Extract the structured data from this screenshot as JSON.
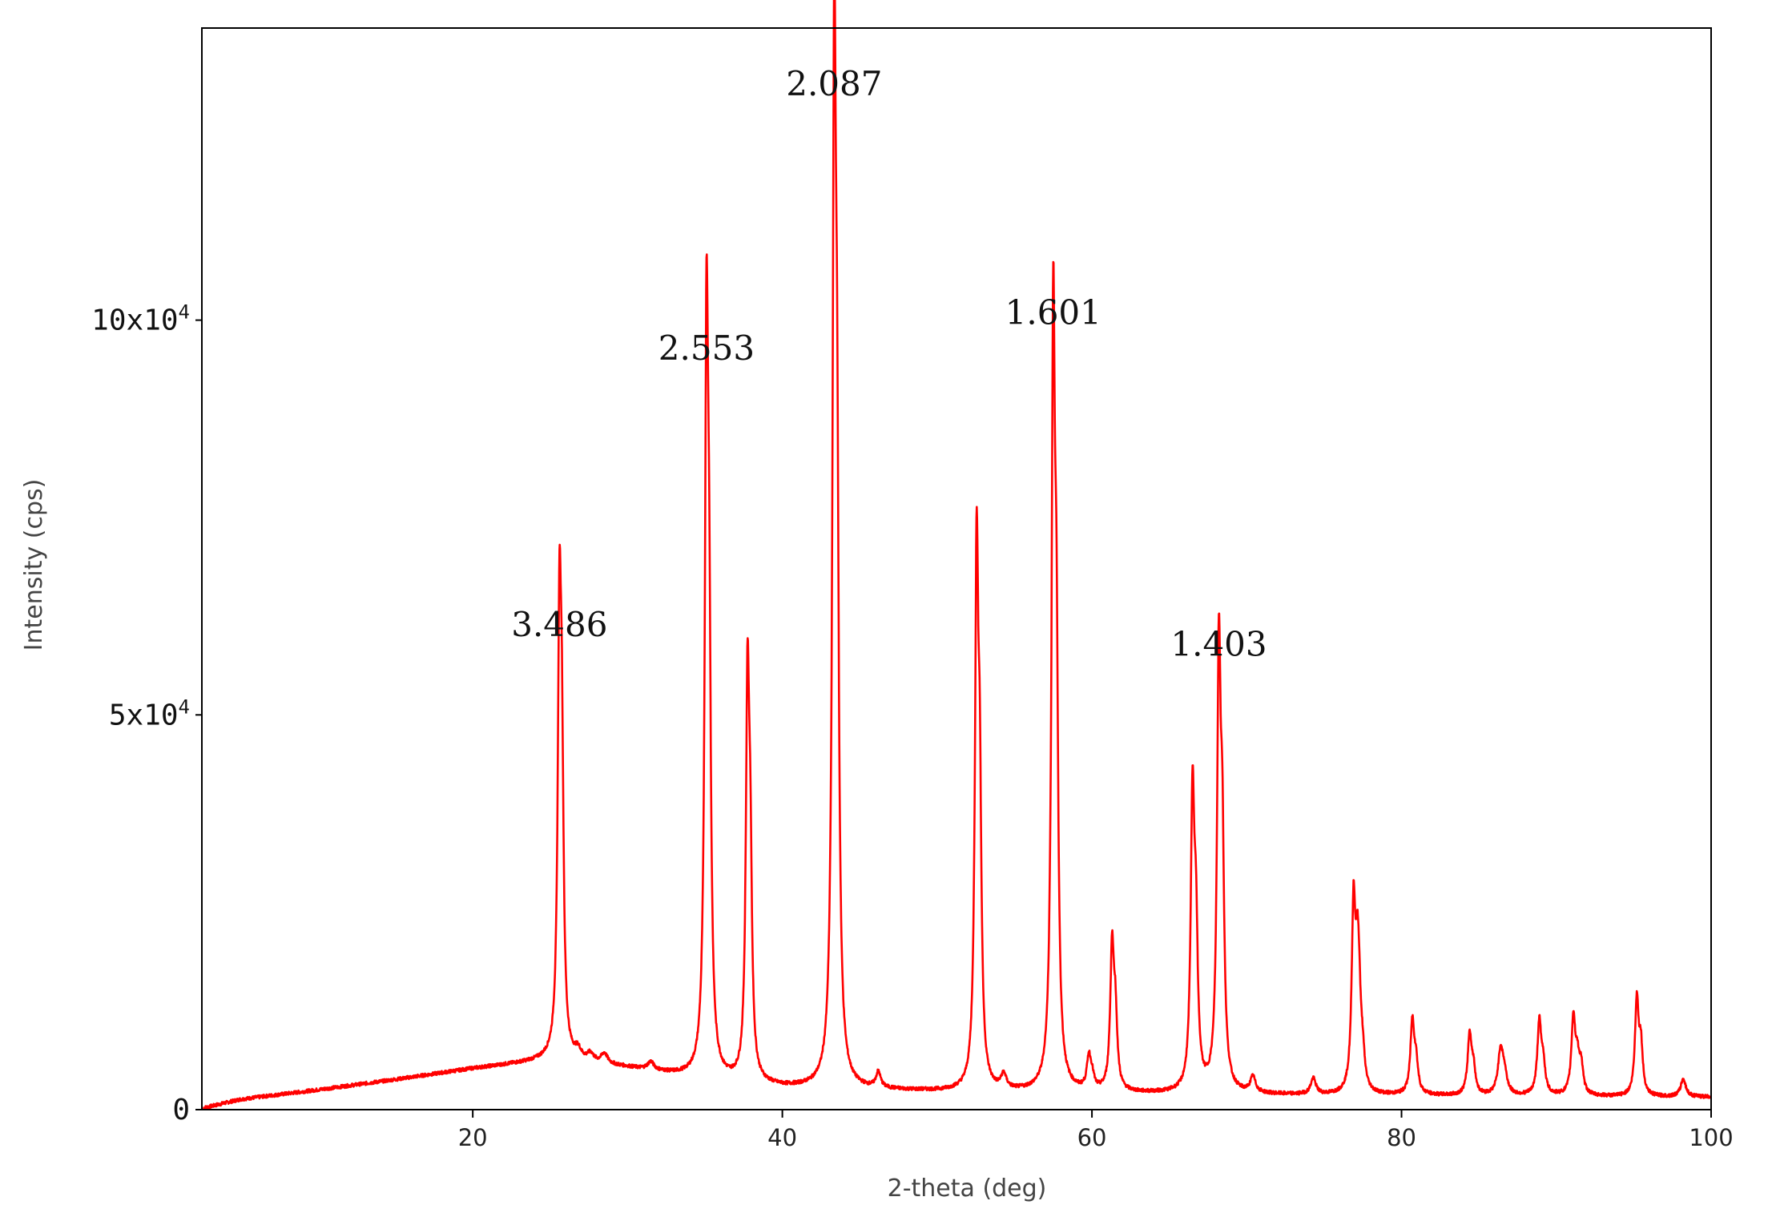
{
  "chart_data": {
    "type": "line",
    "title": "",
    "xlabel": "2-theta (deg)",
    "ylabel": "Intensity (cps)",
    "xlim": [
      2.5,
      100
    ],
    "ylim": [
      0,
      137000
    ],
    "x_ticks": [
      {
        "value": 20,
        "label": "20"
      },
      {
        "value": 40,
        "label": "40"
      },
      {
        "value": 60,
        "label": "60"
      },
      {
        "value": 80,
        "label": "80"
      },
      {
        "value": 100,
        "label": "100"
      }
    ],
    "y_ticks": [
      {
        "value": 0,
        "label": "0",
        "exp": ""
      },
      {
        "value": 50000,
        "label": "5x10",
        "exp": "4"
      },
      {
        "value": 100000,
        "label": "10x10",
        "exp": "4"
      }
    ],
    "grid": false,
    "legend": "none",
    "series": [
      {
        "color": "#ff0000",
        "background": [
          [
            2.6,
            200
          ],
          [
            5,
            1300
          ],
          [
            10,
            2500
          ],
          [
            15,
            3800
          ],
          [
            20,
            5200
          ],
          [
            25,
            6300
          ],
          [
            30,
            5300
          ],
          [
            35,
            3800
          ],
          [
            40,
            2800
          ],
          [
            45,
            2500
          ],
          [
            50,
            2300
          ],
          [
            55,
            2200
          ],
          [
            60,
            2100
          ],
          [
            65,
            2000
          ],
          [
            70,
            1900
          ],
          [
            75,
            1800
          ],
          [
            80,
            1800
          ],
          [
            85,
            1700
          ],
          [
            90,
            1700
          ],
          [
            95,
            1600
          ],
          [
            100,
            1600
          ]
        ],
        "peaks": [
          {
            "x": 25.6,
            "height": 52000,
            "width": 0.13,
            "alpha2": 0.6
          },
          {
            "x": 26.8,
            "height": 1200,
            "width": 0.25,
            "alpha2": 0.0
          },
          {
            "x": 27.6,
            "height": 1000,
            "width": 0.25,
            "alpha2": 0.0
          },
          {
            "x": 28.5,
            "height": 1300,
            "width": 0.25,
            "alpha2": 0.0
          },
          {
            "x": 31.5,
            "height": 1000,
            "width": 0.25,
            "alpha2": 0.0
          },
          {
            "x": 35.1,
            "height": 88000,
            "width": 0.13,
            "alpha2": 0.5
          },
          {
            "x": 37.75,
            "height": 47500,
            "width": 0.13,
            "alpha2": 0.5
          },
          {
            "x": 43.35,
            "height": 123000,
            "width": 0.13,
            "alpha2": 0.5
          },
          {
            "x": 46.2,
            "height": 2000,
            "width": 0.18,
            "alpha2": 0.0
          },
          {
            "x": 52.55,
            "height": 64000,
            "width": 0.13,
            "alpha2": 0.5
          },
          {
            "x": 54.3,
            "height": 1800,
            "width": 0.2,
            "alpha2": 0.0
          },
          {
            "x": 57.5,
            "height": 92000,
            "width": 0.13,
            "alpha2": 0.5
          },
          {
            "x": 59.8,
            "height": 4000,
            "width": 0.15,
            "alpha2": 0.4
          },
          {
            "x": 61.3,
            "height": 17500,
            "width": 0.14,
            "alpha2": 0.5
          },
          {
            "x": 66.5,
            "height": 36000,
            "width": 0.14,
            "alpha2": 0.5
          },
          {
            "x": 68.2,
            "height": 53000,
            "width": 0.14,
            "alpha2": 0.5
          },
          {
            "x": 70.4,
            "height": 2000,
            "width": 0.2,
            "alpha2": 0.0
          },
          {
            "x": 74.3,
            "height": 2000,
            "width": 0.2,
            "alpha2": 0.0
          },
          {
            "x": 76.9,
            "height": 22500,
            "width": 0.14,
            "alpha2": 0.5
          },
          {
            "x": 77.25,
            "height": 9000,
            "width": 0.15,
            "alpha2": 0.4
          },
          {
            "x": 80.7,
            "height": 9000,
            "width": 0.15,
            "alpha2": 0.4
          },
          {
            "x": 84.4,
            "height": 7500,
            "width": 0.15,
            "alpha2": 0.4
          },
          {
            "x": 86.4,
            "height": 5500,
            "width": 0.2,
            "alpha2": 0.4
          },
          {
            "x": 88.9,
            "height": 9000,
            "width": 0.15,
            "alpha2": 0.4
          },
          {
            "x": 91.1,
            "height": 9500,
            "width": 0.15,
            "alpha2": 0.4
          },
          {
            "x": 91.6,
            "height": 3500,
            "width": 0.15,
            "alpha2": 0.0
          },
          {
            "x": 95.2,
            "height": 12000,
            "width": 0.14,
            "alpha2": 0.5
          },
          {
            "x": 98.2,
            "height": 2200,
            "width": 0.2,
            "alpha2": 0.0
          }
        ]
      }
    ],
    "annotations": [
      {
        "text": "3.486",
        "x": 25.6,
        "y": 60000
      },
      {
        "text": "2.553",
        "x": 35.1,
        "y": 95000
      },
      {
        "text": "2.087",
        "x": 43.35,
        "y": 128500
      },
      {
        "text": "1.601",
        "x": 57.5,
        "y": 99500
      },
      {
        "text": "1.403",
        "x": 68.2,
        "y": 57500
      }
    ]
  }
}
